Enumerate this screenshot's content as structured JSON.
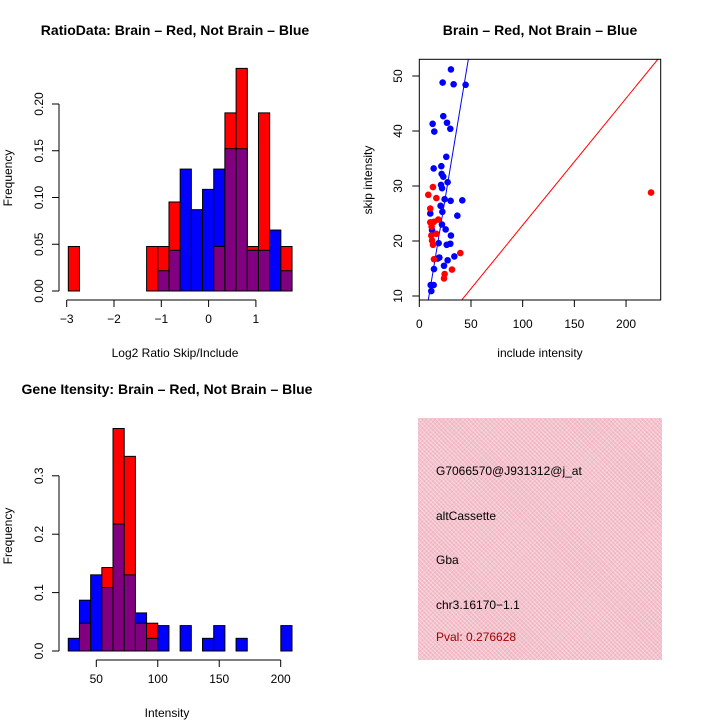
{
  "colors": {
    "brain": "#ff0000",
    "not_brain": "#0000ff",
    "overlap": "#800080",
    "pval": "#a00000",
    "panel": "#f3c3cd"
  },
  "chart_data": [
    {
      "type": "bar",
      "title": "RatioData: Brain – Red, Not Brain – Blue",
      "xlabel": "Log2 Ratio Skip/Include",
      "ylabel": "Frequency",
      "bin_start": -2.966,
      "bin_width": 0.2365,
      "series": [
        {
          "name": "Brain",
          "color": "red",
          "values": [
            0.0476,
            0,
            0,
            0,
            0,
            0,
            0,
            0.0476,
            0.0476,
            0.0952,
            0,
            0,
            0,
            0.0476,
            0.1905,
            0.2381,
            0.0476,
            0.1905,
            0,
            0.0476
          ]
        },
        {
          "name": "Not Brain",
          "color": "blue",
          "values": [
            0,
            0,
            0,
            0,
            0,
            0,
            0,
            0,
            0.0217,
            0.0435,
            0.1304,
            0.087,
            0.1087,
            0.1304,
            0.1522,
            0.1522,
            0.0435,
            0.0435,
            0.0652,
            0.0217
          ]
        }
      ],
      "xticks": [
        -3,
        -2,
        -1,
        0,
        1
      ],
      "xtick_labels": [
        "−3",
        "−2",
        "−1",
        "0",
        "1"
      ],
      "yticks": [
        0,
        0.05,
        0.1,
        0.15,
        0.2
      ],
      "ytick_labels": [
        "0.00",
        "0.05",
        "0.10",
        "0.15",
        "0.20"
      ],
      "ylim": [
        0,
        0.24
      ]
    },
    {
      "type": "scatter",
      "title": "Brain – Red, Not Brain – Blue",
      "xlabel": "include intensity",
      "ylabel": "skip intensity",
      "xlim": [
        0,
        233.5
      ],
      "ylim": [
        9.27,
        53.0
      ],
      "xticks": [
        0,
        50,
        100,
        150,
        200
      ],
      "xtick_labels": [
        "0",
        "50",
        "100",
        "150",
        "200"
      ],
      "yticks": [
        10,
        20,
        30,
        40,
        50
      ],
      "ytick_labels": [
        "10",
        "20",
        "30",
        "40",
        "50"
      ],
      "series": [
        {
          "name": "Not Brain",
          "color": "blue",
          "points": [
            [
              30.6,
              51.2
            ],
            [
              22.6,
              48.8
            ],
            [
              33.2,
              48.5
            ],
            [
              44.8,
              48.4
            ],
            [
              23.2,
              42.7
            ],
            [
              26.8,
              41.5
            ],
            [
              12.9,
              41.3
            ],
            [
              14.5,
              39.9
            ],
            [
              30,
              40.4
            ],
            [
              26.1,
              35.3
            ],
            [
              13.9,
              33.2
            ],
            [
              21.3,
              33.6
            ],
            [
              21.6,
              32.2
            ],
            [
              23.2,
              31.7
            ],
            [
              27.4,
              30.7
            ],
            [
              21,
              30.2
            ],
            [
              22,
              29.6
            ],
            [
              24.5,
              27.6
            ],
            [
              30.3,
              27.3
            ],
            [
              41.6,
              27.4
            ],
            [
              20.6,
              26.4
            ],
            [
              22.3,
              25.3
            ],
            [
              10.6,
              25
            ],
            [
              36.8,
              24.6
            ],
            [
              21.9,
              23
            ],
            [
              12.3,
              22
            ],
            [
              25.5,
              22.1
            ],
            [
              30.6,
              21
            ],
            [
              18.7,
              19.6
            ],
            [
              26.5,
              19.3
            ],
            [
              30,
              19.5
            ],
            [
              19.4,
              17
            ],
            [
              27.4,
              16.5
            ],
            [
              33.9,
              17.2
            ],
            [
              23.9,
              15.5
            ],
            [
              14.2,
              14.9
            ],
            [
              13.9,
              12
            ],
            [
              11,
              12
            ],
            [
              11.6,
              10.9
            ],
            [
              17.7,
              16.8
            ]
          ]
        },
        {
          "name": "Brain",
          "color": "red",
          "points": [
            [
              8.7,
              28.4
            ],
            [
              13.2,
              29.8
            ],
            [
              16.5,
              27.8
            ],
            [
              10.6,
              25.9
            ],
            [
              10.6,
              23.4
            ],
            [
              14.2,
              23.5
            ],
            [
              18.4,
              23.9
            ],
            [
              16.5,
              21.3
            ],
            [
              11.6,
              21
            ],
            [
              12.3,
              20.1
            ],
            [
              13.2,
              19.3
            ],
            [
              14.2,
              16.7
            ],
            [
              39.7,
              17.8
            ],
            [
              31.6,
              14.8
            ],
            [
              24.5,
              14
            ],
            [
              23.9,
              13.2
            ],
            [
              224.2,
              28.8
            ],
            [
              11.9,
              22.6
            ]
          ]
        }
      ],
      "lines": [
        {
          "name": "Not Brain fit",
          "color": "blue",
          "slope": 1.13,
          "intercept": -0.56
        },
        {
          "name": "Brain fit",
          "color": "red",
          "slope": 0.2307,
          "intercept": -0.2
        }
      ]
    },
    {
      "type": "bar",
      "title": "Gene Itensity: Brain – Red, Not Brain – Blue",
      "xlabel": "Intensity",
      "ylabel": "Frequency",
      "bin_start": 27.2,
      "bin_width": 9.1,
      "series": [
        {
          "name": "Brain",
          "color": "red",
          "values": [
            0,
            0.0476,
            0,
            0.1429,
            0.381,
            0.3333,
            0.0476,
            0.0476,
            0,
            0,
            0,
            0,
            0,
            0,
            0,
            0,
            0,
            0,
            0,
            0
          ]
        },
        {
          "name": "Not Brain",
          "color": "blue",
          "values": [
            0.0217,
            0.087,
            0.1304,
            0.1087,
            0.2174,
            0.1304,
            0.0652,
            0.0217,
            0.0435,
            0,
            0.0435,
            0,
            0.0217,
            0.0435,
            0,
            0.0217,
            0,
            0,
            0,
            0.0435
          ]
        }
      ],
      "xticks": [
        50,
        100,
        150,
        200
      ],
      "xtick_labels": [
        "50",
        "100",
        "150",
        "200"
      ],
      "yticks": [
        0,
        0.1,
        0.2,
        0.3
      ],
      "ytick_labels": [
        "0.0",
        "0.1",
        "0.2",
        "0.3"
      ],
      "ylim": [
        0,
        0.4
      ]
    }
  ],
  "info_panel": {
    "probe_id": "G7066570@J931312@j_at",
    "event_type": "altCassette",
    "gene": "Gba",
    "location": "chr3.16170−1.1",
    "pval": "Pval: 0.276628"
  }
}
